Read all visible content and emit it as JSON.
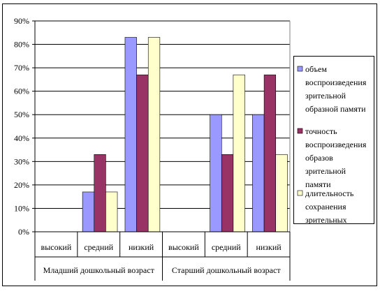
{
  "chart_data": {
    "type": "bar",
    "categories": [
      "высокий",
      "средний",
      "низкий",
      "высокий",
      "средний",
      "низкий"
    ],
    "groups": [
      {
        "label": "Младший дошкольный возраст",
        "span": [
          0,
          2
        ]
      },
      {
        "label": "Старший дошкольный возраст",
        "span": [
          3,
          5
        ]
      }
    ],
    "series": [
      {
        "name": "объем воспроизведения зрительной образной памяти",
        "values": [
          0,
          17,
          83,
          0,
          50,
          50
        ],
        "color": "#9999ff"
      },
      {
        "name": "точность воспроизведения образов зрительной памяти",
        "values": [
          0,
          33,
          67,
          0,
          33,
          67
        ],
        "color": "#993366"
      },
      {
        "name": "длительность сохранения зрительных",
        "values": [
          0,
          17,
          83,
          0,
          67,
          33
        ],
        "color": "#ffffcc"
      }
    ],
    "yticks": [
      "0%",
      "10%",
      "20%",
      "30%",
      "40%",
      "50%",
      "60%",
      "70%",
      "80%",
      "90%"
    ],
    "ylim": [
      0,
      90
    ],
    "grid": true,
    "legend_position": "right",
    "legend_lines": [
      [
        "объем",
        "воспроизведения",
        "зрительной",
        "образной памяти"
      ],
      [
        "точность",
        "воспроизведения",
        "образов",
        "зрительной",
        "памяти"
      ],
      [
        "длительность",
        "сохранения",
        "зрительных"
      ]
    ]
  }
}
